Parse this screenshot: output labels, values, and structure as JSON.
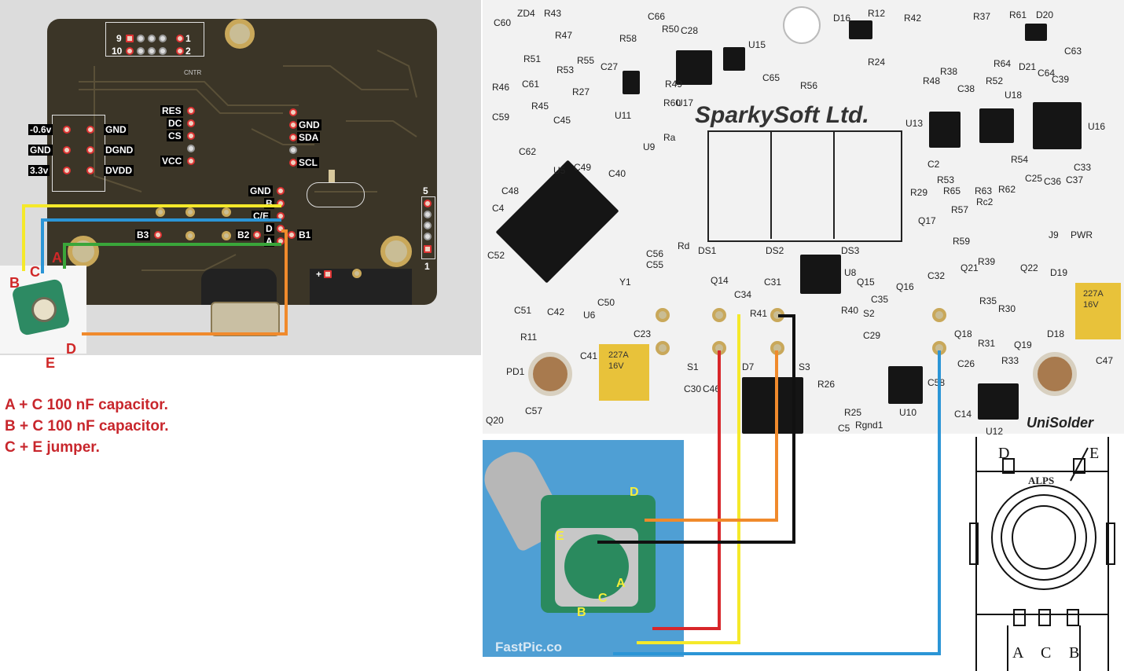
{
  "left_pcb": {
    "header_top": {
      "pin9": "9",
      "pin1": "1",
      "pin10": "10",
      "pin2": "2",
      "silk": "CNTR"
    },
    "power": [
      {
        "left": "-0.6v",
        "right": "GND"
      },
      {
        "left": "GND",
        "right": "DGND"
      },
      {
        "left": "3.3v",
        "right": "DVDD"
      }
    ],
    "display": [
      "RES",
      "DC",
      "CS",
      "VCC"
    ],
    "i2c": [
      "GND",
      "SDA",
      "",
      "SCL"
    ],
    "encoder_pads": [
      "GND",
      "B",
      "C/E",
      "D",
      "A"
    ],
    "b_pads": {
      "b3": "B3",
      "b2": "B2",
      "b1": "B1"
    },
    "conn5": {
      "top": "5",
      "bottom": "1"
    },
    "plus": "+"
  },
  "encoder_left": {
    "a": "A",
    "b": "B",
    "c": "C",
    "d": "D",
    "e": "E"
  },
  "notes": [
    "A + C 100 nF capacitor.",
    "B + C 100 nF capacitor.",
    "C + E jumper."
  ],
  "right_pcb": {
    "brand": "SparkySoft Ltd.",
    "footer": "UniSolder",
    "silk": {
      "zd4": "ZD4",
      "r43": "R43",
      "r47": "R47",
      "c60": "C60",
      "r51": "R51",
      "r55": "R55",
      "r53": "R53",
      "c61": "C61",
      "r46": "R46",
      "c59": "C59",
      "r45": "R45",
      "r27": "R27",
      "c45": "C45",
      "c62": "C62",
      "r58": "R58",
      "c66": "C66",
      "r50": "R50",
      "c28": "C28",
      "u15": "U15",
      "c27": "C27",
      "r49": "R49",
      "r60": "R60",
      "u17": "U17",
      "u11": "U11",
      "c65": "C65",
      "r56": "R56",
      "d16": "D16",
      "r12": "R12",
      "r42": "R42",
      "r37": "R37",
      "r61": "R61",
      "d20": "D20",
      "r24": "R24",
      "r64": "R64",
      "d21": "D21",
      "c63": "C63",
      "c64": "C64",
      "r48": "R48",
      "r38": "R38",
      "c38": "C38",
      "r52": "R52",
      "u18": "U18",
      "c39": "C39",
      "u16": "U16",
      "u13": "U13",
      "c2": "C2",
      "r54": "R54",
      "c33": "C33",
      "r63": "R63",
      "r62": "R62",
      "c25": "C25",
      "r65": "R65",
      "c36": "C36",
      "c37": "C37",
      "ra": "Ra",
      "u9": "U9",
      "u5": "U5",
      "c49": "C49",
      "c40": "C40",
      "c48": "C48",
      "c4": "C4",
      "c52": "C52",
      "r29": "R29",
      "rc2": "Rc2",
      "q17": "Q17",
      "r57": "R57",
      "r59": "R59",
      "j9": "J9",
      "pwr": "PWR",
      "rd": "Rd",
      "ds1": "DS1",
      "ds2": "DS2",
      "ds3": "DS3",
      "c56": "C56",
      "c55": "C55",
      "y1": "Y1",
      "q14": "Q14",
      "c31": "C31",
      "u8": "U8",
      "q15": "Q15",
      "q16": "Q16",
      "c32": "C32",
      "r39": "R39",
      "q21": "Q21",
      "q22": "Q22",
      "d19": "D19",
      "c50": "C50",
      "c34": "C34",
      "c35": "C35",
      "r35": "R35",
      "r30": "R30",
      "c51": "C51",
      "c42": "C42",
      "u6": "U6",
      "r41": "R41",
      "r40": "R40",
      "s2": "S2",
      "c29": "C29",
      "q18": "Q18",
      "d18": "D18",
      "r11": "R11",
      "c23": "C23",
      "r31": "R31",
      "q19": "Q19",
      "c47": "C47",
      "c41": "C41",
      "s1": "S1",
      "d7": "D7",
      "s3": "S3",
      "c26": "C26",
      "r33": "R33",
      "pd1": "PD1",
      "c30": "C30",
      "c46": "C46",
      "r26": "R26",
      "u10": "U10",
      "c58": "C58",
      "c57": "C57",
      "r25": "R25",
      "c5": "C5",
      "rgnd1": "Rgnd1",
      "q20": "Q20",
      "c14": "C14",
      "u12": "U12",
      "cap_tant_code": "227A",
      "cap_tant_sub": "16V"
    }
  },
  "photo": {
    "d": "D",
    "e": "E",
    "a": "A",
    "c": "C",
    "b": "B",
    "watermark": "FastPic.co"
  },
  "drawing": {
    "d": "D",
    "e": "E",
    "brand": "ALPS",
    "a": "A",
    "c": "C",
    "b": "B"
  },
  "wire_colors": {
    "yellow": "#f5e92a",
    "blue": "#2b95d6",
    "green": "#3aa63a",
    "orange": "#f08a2c",
    "red": "#d8262a",
    "black": "#111111"
  }
}
